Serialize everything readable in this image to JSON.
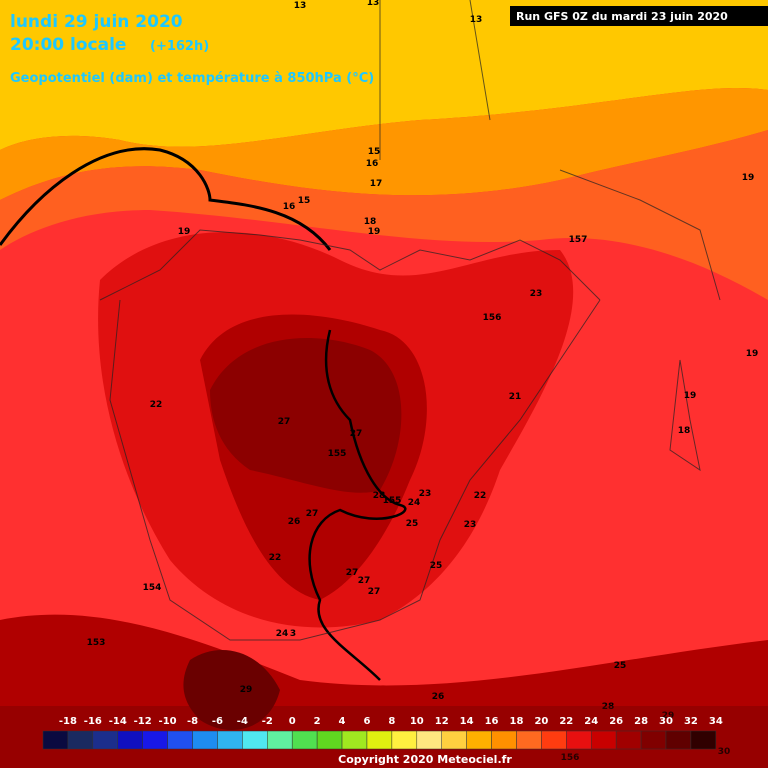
{
  "header": {
    "date": "lundi 29 juin 2020",
    "time": "20:00 locale",
    "offset": "(+162h)",
    "parameter": "Geopotentiel (dam) et température à 850hPa (°C)",
    "run": "Run GFS 0Z du mardi 23 juin 2020"
  },
  "scale": {
    "labels": [
      "-18",
      "-16",
      "-14",
      "-12",
      "-10",
      "-8",
      "-6",
      "-4",
      "-2",
      "0",
      "2",
      "4",
      "6",
      "8",
      "10",
      "12",
      "14",
      "16",
      "18",
      "20",
      "22",
      "24",
      "26",
      "28",
      "30",
      "32",
      "34"
    ]
  },
  "contour_labels": [
    "13",
    "13",
    "13",
    "15",
    "16",
    "17",
    "16",
    "15",
    "18",
    "19",
    "19",
    "157",
    "19",
    "23",
    "156",
    "19",
    "22",
    "21",
    "19",
    "18",
    "27",
    "27",
    "155",
    "28",
    "155",
    "23",
    "24",
    "22",
    "27",
    "26",
    "25",
    "23",
    "22",
    "25",
    "27",
    "27",
    "27",
    "154",
    "24",
    "3",
    "153",
    "29",
    "26",
    "25",
    "28",
    "29",
    "30",
    "156"
  ],
  "footer": {
    "copyright": "Copyright 2020 Meteociel.fr"
  }
}
